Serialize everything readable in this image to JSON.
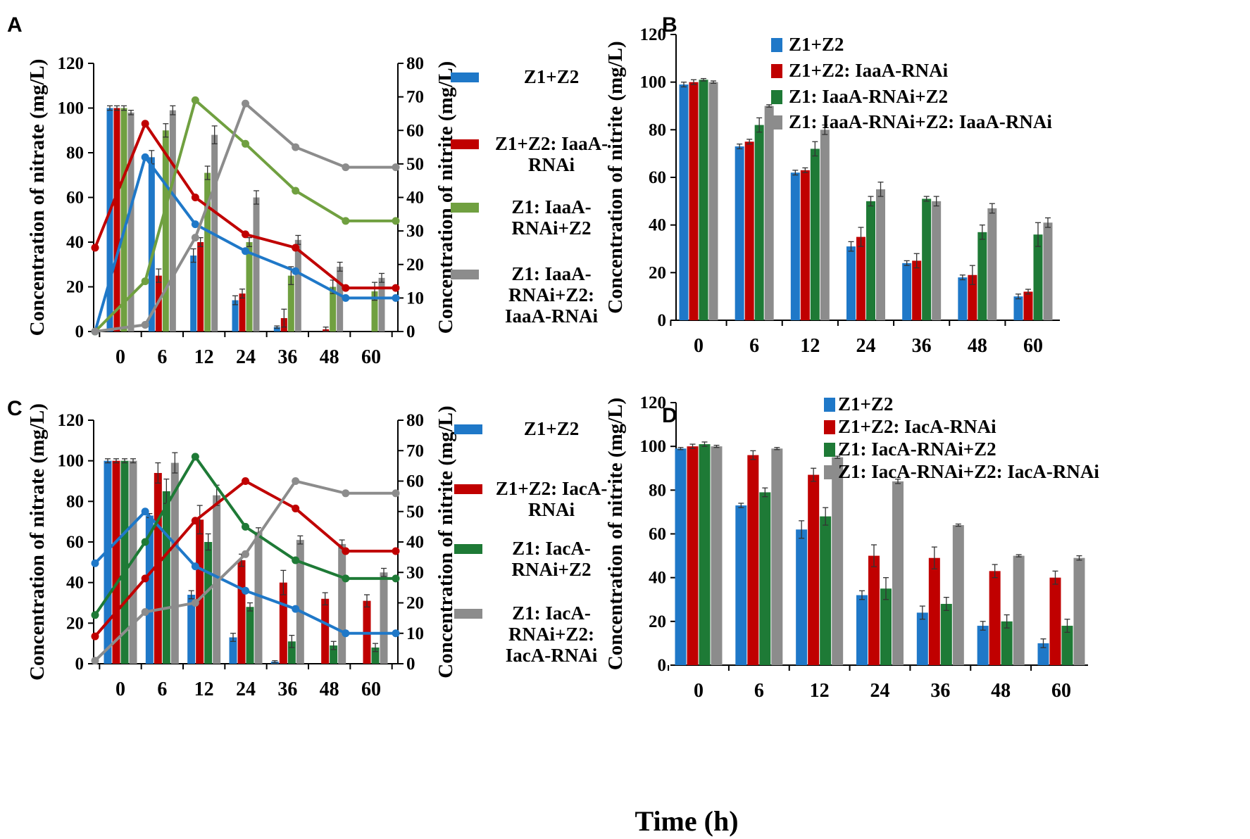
{
  "figure": {
    "x_axis_title": "Time (h)"
  },
  "colors": {
    "blue": "#1f78c8",
    "red": "#c00000",
    "green_light": "#70a040",
    "green_dark": "#1e7a36",
    "gray": "#8c8c8c"
  },
  "chart_data": [
    {
      "panel": "A",
      "type": "bar+line",
      "categories": [
        "0",
        "6",
        "12",
        "24",
        "36",
        "48",
        "60"
      ],
      "ylabel": "Concentration of nitrate (mg/L)",
      "y2label": "Concentration of nitrite (mg/L)",
      "ylim": [
        0,
        120
      ],
      "y2lim": [
        0,
        80
      ],
      "yticks": [
        0,
        20,
        40,
        60,
        80,
        100,
        120
      ],
      "y2ticks": [
        0,
        10,
        20,
        30,
        40,
        50,
        60,
        70,
        80
      ],
      "series": [
        {
          "name": "Z1+Z2",
          "color": "#1f78c8",
          "bars": [
            100,
            78,
            34,
            14,
            2,
            0,
            0
          ],
          "bar_err": [
            1,
            3,
            3,
            2,
            0.5,
            0,
            0
          ],
          "line": [
            0,
            52,
            32,
            24,
            18,
            10,
            10
          ]
        },
        {
          "name": "Z1+Z2: IaaA-RNAi",
          "color": "#c00000",
          "bars": [
            100,
            25,
            40,
            17,
            6,
            1,
            0
          ],
          "bar_err": [
            1,
            3,
            2,
            2,
            4,
            1,
            0
          ],
          "line": [
            25,
            62,
            40,
            29,
            25,
            13,
            13
          ]
        },
        {
          "name": "Z1: IaaA-RNAi+Z2",
          "color": "#70a040",
          "bars": [
            100,
            90,
            71,
            40,
            25,
            20,
            18
          ],
          "bar_err": [
            1,
            3,
            3,
            2,
            4,
            3,
            4
          ],
          "line": [
            0,
            15,
            69,
            56,
            42,
            33,
            33
          ]
        },
        {
          "name": "Z1: IaaA-RNAi+Z2: IaaA-RNAi",
          "color": "#8c8c8c",
          "bars": [
            98,
            99,
            88,
            60,
            41,
            29,
            24
          ],
          "bar_err": [
            1,
            2,
            4,
            3,
            2,
            2,
            2
          ],
          "line": [
            0,
            2,
            28,
            68,
            55,
            49,
            49
          ]
        }
      ],
      "legend": [
        "Z1+Z2",
        "Z1+Z2: IaaA-\nRNAi",
        "Z1: IaaA-\nRNAi+Z2",
        "Z1: IaaA-\nRNAi+Z2:\nIaaA-RNAi"
      ]
    },
    {
      "panel": "B",
      "type": "bar",
      "categories": [
        "0",
        "6",
        "12",
        "24",
        "36",
        "48",
        "60"
      ],
      "ylabel": "Concentration of nitrite (mg/L)",
      "ylim": [
        0,
        120
      ],
      "yticks": [
        0,
        20,
        40,
        60,
        80,
        100,
        120
      ],
      "series": [
        {
          "name": "Z1+Z2",
          "color": "#1f78c8",
          "bars": [
            99,
            73,
            62,
            31,
            24,
            18,
            10
          ],
          "bar_err": [
            1,
            1,
            1,
            2,
            1,
            1,
            1
          ]
        },
        {
          "name": "Z1+Z2: IaaA-RNAi",
          "color": "#c00000",
          "bars": [
            100,
            75,
            63,
            35,
            25,
            19,
            12
          ],
          "bar_err": [
            1,
            1,
            1,
            4,
            3,
            4,
            1
          ]
        },
        {
          "name": "Z1: IaaA-RNAi+Z2",
          "color": "#1e7a36",
          "bars": [
            101,
            82,
            72,
            50,
            51,
            37,
            36
          ],
          "bar_err": [
            0.5,
            3,
            3,
            2,
            1,
            3,
            5
          ]
        },
        {
          "name": "Z1: IaaA-RNAi+Z2: IaaA-RNAi",
          "color": "#8c8c8c",
          "bars": [
            100,
            90,
            80,
            55,
            50,
            47,
            41
          ],
          "bar_err": [
            0.5,
            0.5,
            2,
            3,
            2,
            2,
            2
          ]
        }
      ],
      "legend": [
        "Z1+Z2",
        "Z1+Z2: IaaA-RNAi",
        "Z1: IaaA-RNAi+Z2",
        "Z1: IaaA-RNAi+Z2: IaaA-RNAi"
      ]
    },
    {
      "panel": "C",
      "type": "bar+line",
      "categories": [
        "0",
        "6",
        "12",
        "24",
        "36",
        "48",
        "60"
      ],
      "ylabel": "Concentration of nitrate (mg/L)",
      "y2label": "Concentration of nitrite (mg/L)",
      "ylim": [
        0,
        120
      ],
      "y2lim": [
        0,
        80
      ],
      "yticks": [
        0,
        20,
        40,
        60,
        80,
        100,
        120
      ],
      "y2ticks": [
        0,
        10,
        20,
        30,
        40,
        50,
        60,
        70,
        80
      ],
      "series": [
        {
          "name": "Z1+Z2",
          "color": "#1f78c8",
          "bars": [
            100,
            73,
            34,
            13,
            1,
            0,
            0
          ],
          "bar_err": [
            1,
            1,
            2,
            2,
            0.5,
            0,
            0
          ],
          "line": [
            33,
            50,
            32,
            24,
            18,
            10,
            10
          ]
        },
        {
          "name": "Z1+Z2: IacA-RNAi",
          "color": "#c00000",
          "bars": [
            100,
            94,
            71,
            51,
            40,
            32,
            31
          ],
          "bar_err": [
            1,
            5,
            7,
            3,
            6,
            3,
            3
          ],
          "line": [
            9,
            28,
            47,
            60,
            51,
            37,
            37
          ]
        },
        {
          "name": "Z1: IacA-RNAi+Z2",
          "color": "#1e7a36",
          "bars": [
            100,
            85,
            60,
            28,
            11,
            9,
            8
          ],
          "bar_err": [
            1,
            6,
            4,
            2,
            3,
            2,
            2
          ],
          "line": [
            16,
            40,
            68,
            45,
            34,
            28,
            28
          ]
        },
        {
          "name": "Z1: IacA-RNAi+Z2: IacA-RNAi",
          "color": "#8c8c8c",
          "bars": [
            100,
            99,
            83,
            65,
            61,
            59,
            45
          ],
          "bar_err": [
            1,
            5,
            5,
            2,
            2,
            2,
            2
          ],
          "line": [
            1,
            17,
            20,
            36,
            60,
            56,
            56
          ]
        }
      ],
      "legend": [
        "Z1+Z2",
        "Z1+Z2: IacA-\nRNAi",
        "Z1: IacA-\nRNAi+Z2",
        "Z1: IacA-\nRNAi+Z2:\nIacA-RNAi"
      ]
    },
    {
      "panel": "D",
      "type": "bar",
      "categories": [
        "0",
        "6",
        "12",
        "24",
        "36",
        "48",
        "60"
      ],
      "ylabel": "Concentration of nitrite (mg/L)",
      "ylim": [
        0,
        120
      ],
      "yticks": [
        0,
        20,
        40,
        60,
        80,
        100,
        120
      ],
      "series": [
        {
          "name": "Z1+Z2",
          "color": "#1f78c8",
          "bars": [
            99,
            73,
            62,
            32,
            24,
            18,
            10
          ],
          "bar_err": [
            0.5,
            1,
            4,
            2,
            3,
            2,
            2
          ]
        },
        {
          "name": "Z1+Z2: IacA-RNAi",
          "color": "#c00000",
          "bars": [
            100,
            96,
            87,
            50,
            49,
            43,
            40
          ],
          "bar_err": [
            1,
            2,
            3,
            5,
            5,
            3,
            3
          ]
        },
        {
          "name": "Z1: IacA-RNAi+Z2",
          "color": "#1e7a36",
          "bars": [
            101,
            79,
            68,
            35,
            28,
            20,
            18
          ],
          "bar_err": [
            1,
            2,
            4,
            5,
            3,
            3,
            3
          ]
        },
        {
          "name": "Z1: IacA-RNAi+Z2: IacA-RNAi",
          "color": "#8c8c8c",
          "bars": [
            100,
            99,
            95,
            84,
            64,
            50,
            49
          ],
          "bar_err": [
            0.5,
            0.5,
            0.5,
            1,
            0.5,
            0.5,
            1
          ]
        }
      ],
      "legend": [
        "Z1+Z2",
        "Z1+Z2: IacA-RNAi",
        "Z1: IacA-RNAi+Z2",
        "Z1: IacA-RNAi+Z2: IacA-RNAi"
      ]
    }
  ]
}
